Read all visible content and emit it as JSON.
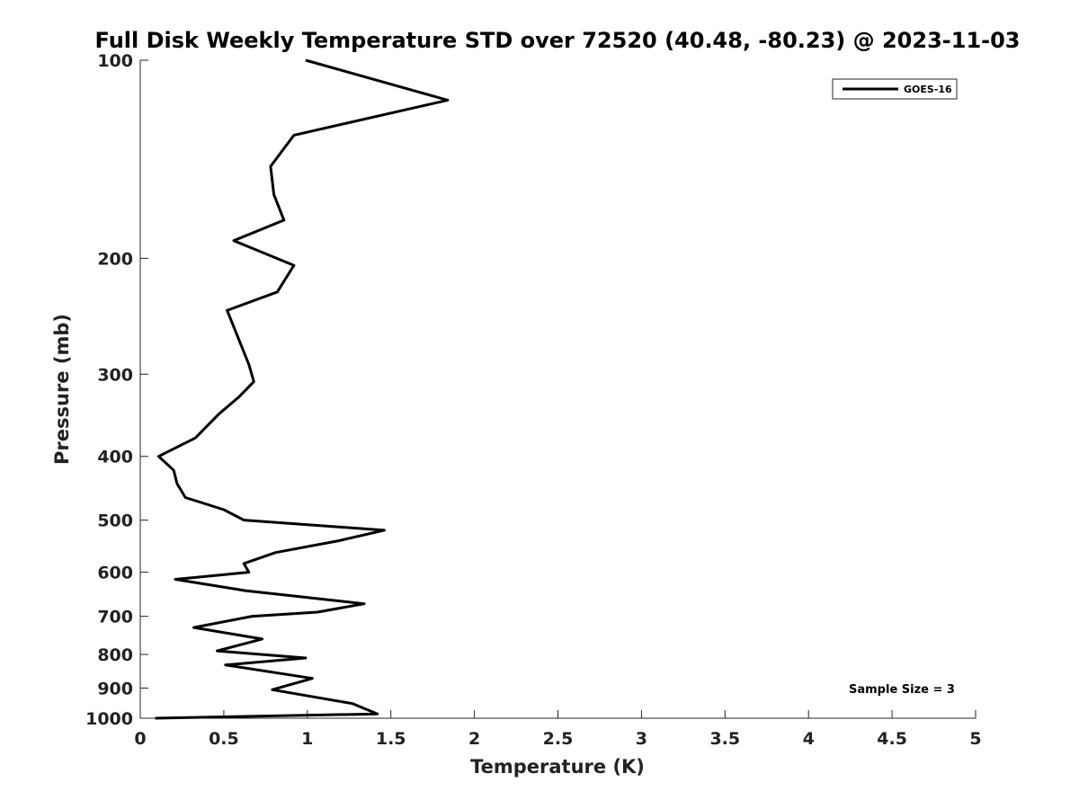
{
  "chart_data": {
    "type": "line",
    "title": "Full Disk Weekly Temperature STD over 72520 (40.48, -80.23) @ 2023-11-03",
    "xlabel": "Temperature (K)",
    "ylabel": "Pressure (mb)",
    "xlim": [
      0,
      5
    ],
    "ylim": [
      100,
      1000
    ],
    "yscale": "log",
    "y_reversed": true,
    "x_ticks": [
      "0",
      "0.5",
      "1",
      "1.5",
      "2",
      "2.5",
      "3",
      "3.5",
      "4",
      "4.5",
      "5"
    ],
    "y_ticks": [
      "100",
      "200",
      "300",
      "400",
      "500",
      "600",
      "700",
      "800",
      "900",
      "1000"
    ],
    "grid": false,
    "legend_position": "top-right",
    "annotation": "Sample Size = 3",
    "series": [
      {
        "name": "GOES-16",
        "color": "#000000",
        "x": [
          0.99,
          1.84,
          0.92,
          0.78,
          0.8,
          0.86,
          0.56,
          0.92,
          0.82,
          0.52,
          0.65,
          0.68,
          0.59,
          0.47,
          0.33,
          0.11,
          0.2,
          0.22,
          0.27,
          0.5,
          0.62,
          1.46,
          1.18,
          0.81,
          0.62,
          0.65,
          0.21,
          0.63,
          1.34,
          1.06,
          0.67,
          0.32,
          0.73,
          0.46,
          0.99,
          0.51,
          1.03,
          0.79,
          1.27,
          1.42,
          0.09
        ],
        "y": [
          100,
          115,
          130,
          145,
          160,
          175,
          188,
          205,
          225,
          240,
          290,
          308,
          325,
          345,
          375,
          400,
          420,
          440,
          462,
          482,
          500,
          518,
          538,
          560,
          582,
          600,
          615,
          640,
          670,
          690,
          700,
          728,
          758,
          790,
          810,
          830,
          870,
          905,
          950,
          985,
          1000
        ]
      }
    ]
  }
}
